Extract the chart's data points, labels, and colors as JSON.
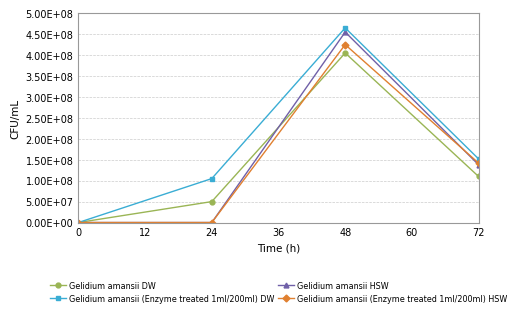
{
  "time": [
    0,
    24,
    48,
    72
  ],
  "series": [
    {
      "label": "Gelidium amansii DW",
      "values": [
        0,
        50000000.0,
        405000000.0,
        110000000.0
      ],
      "color": "#9ab555",
      "marker": "o",
      "markersize": 3.5
    },
    {
      "label": "Gelidium amansii HSW",
      "values": [
        0,
        0,
        455000000.0,
        138000000.0
      ],
      "color": "#7060a8",
      "marker": "^",
      "markersize": 3.5
    },
    {
      "label": "Gelidium amansii (Enzyme treated 1ml/200ml) DW",
      "values": [
        0,
        105000000.0,
        465000000.0,
        152000000.0
      ],
      "color": "#3aadd4",
      "marker": "s",
      "markersize": 3.5
    },
    {
      "label": "Gelidium amansii (Enzyme treated 1ml/200ml) HSW",
      "values": [
        0,
        0,
        425000000.0,
        142000000.0
      ],
      "color": "#e08030",
      "marker": "D",
      "markersize": 3.5
    }
  ],
  "xlabel": "Time (h)",
  "ylabel": "CFU/mL",
  "xlim": [
    0,
    72
  ],
  "ylim": [
    0,
    500000000.0
  ],
  "xticks": [
    0,
    12,
    24,
    36,
    48,
    60,
    72
  ],
  "ytick_values": [
    0,
    50000000.0,
    100000000.0,
    150000000.0,
    200000000.0,
    250000000.0,
    300000000.0,
    350000000.0,
    400000000.0,
    450000000.0,
    500000000.0
  ],
  "ytick_labels": [
    "0.00E+00",
    "5.00E+07",
    "1.00E+08",
    "1.50E+08",
    "2.00E+08",
    "2.50E+08",
    "3.00E+08",
    "3.50E+08",
    "4.00E+08",
    "4.50E+08",
    "5.00E+08"
  ],
  "grid_color": "#cccccc",
  "background_color": "#ffffff",
  "legend_fontsize": 5.8,
  "axis_label_fontsize": 7.5,
  "tick_fontsize": 7.0,
  "linewidth": 1.0
}
